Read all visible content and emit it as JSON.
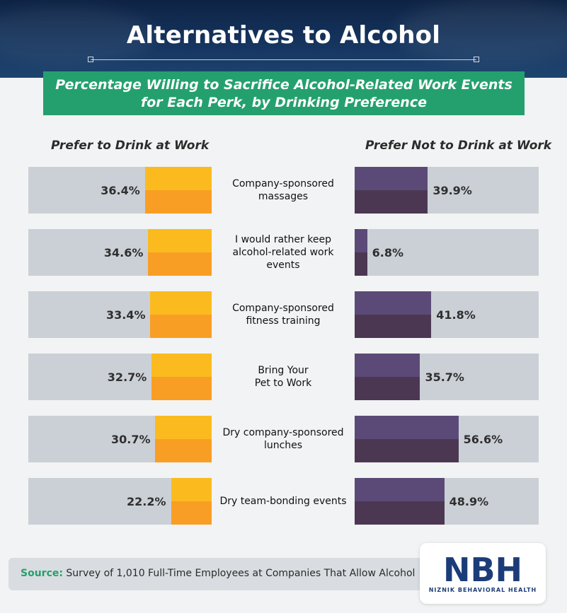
{
  "header": {
    "title": "Alternatives to Alcohol",
    "subtitle_line1": "Percentage Willing to Sacrifice Alcohol-Related Work Events",
    "subtitle_line2": "for Each Perk, by Drinking Preference"
  },
  "colors": {
    "left_top": "#fbbb1f",
    "left_bottom": "#f99e24",
    "right_top": "#5b4a77",
    "right_bottom": "#4c3753",
    "track": "#cbd0d6",
    "accent": "#24a06e",
    "header_bg": "#15345e"
  },
  "chart_data": {
    "type": "bar",
    "orientation": "horizontal-diverging",
    "title": "Alternatives to Alcohol",
    "subtitle": "Percentage Willing to Sacrifice Alcohol-Related Work Events for Each Perk, by Drinking Preference",
    "categories": [
      "Company-sponsored massages",
      "I would rather keep alcohol-related work events",
      "Company-sponsored fitness training",
      "Bring Your Pet to Work",
      "Dry company-sponsored lunches",
      "Dry team-bonding events"
    ],
    "category_lines": [
      [
        "Company-sponsored",
        "massages"
      ],
      [
        "I would rather keep",
        "alcohol-related work events"
      ],
      [
        "Company-sponsored",
        "fitness training"
      ],
      [
        "Bring Your",
        "Pet to Work"
      ],
      [
        "Dry company-sponsored",
        "lunches"
      ],
      [
        "Dry team-bonding events",
        ""
      ]
    ],
    "series": [
      {
        "name": "Prefer to Drink at Work",
        "values": [
          36.4,
          34.6,
          33.4,
          32.7,
          30.7,
          22.2
        ],
        "labels": [
          "36.4%",
          "34.6%",
          "33.4%",
          "32.7%",
          "30.7%",
          "22.2%"
        ]
      },
      {
        "name": "Prefer Not to Drink at Work",
        "values": [
          39.9,
          6.8,
          41.8,
          35.7,
          56.6,
          48.9
        ],
        "labels": [
          "39.9%",
          "6.8%",
          "41.8%",
          "35.7%",
          "56.6%",
          "48.9%"
        ]
      }
    ],
    "xlim": [
      0,
      100
    ],
    "grid": false,
    "legend": "column headers above each side"
  },
  "footer": {
    "source_label": "Source:",
    "source_text": "Survey of 1,010 Full-Time Employees at Companies That Allow Alcohol"
  },
  "logo": {
    "text": "NBH",
    "subtext": "NIZNIK BEHAVIORAL HEALTH",
    "color": "#1b3c78"
  }
}
